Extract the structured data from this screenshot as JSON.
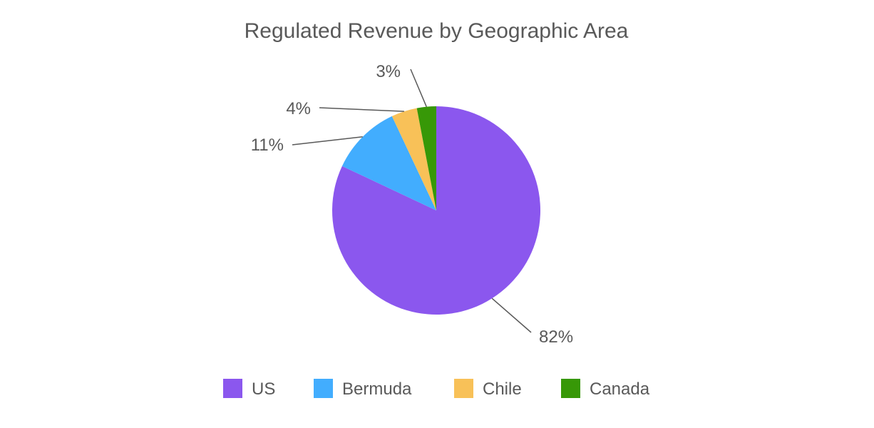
{
  "chart_data": {
    "type": "pie",
    "title": "Regulated Revenue by Geographic Area",
    "categories": [
      "US",
      "Bermuda",
      "Chile",
      "Canada"
    ],
    "values": [
      82,
      11,
      4,
      3
    ],
    "value_labels": [
      "82%",
      "11%",
      "4%",
      "3%"
    ],
    "colors": [
      "#8b57ee",
      "#42adfe",
      "#f8c158",
      "#379807"
    ],
    "start_angle_deg": 0,
    "direction": "clockwise",
    "legend_position": "bottom"
  }
}
